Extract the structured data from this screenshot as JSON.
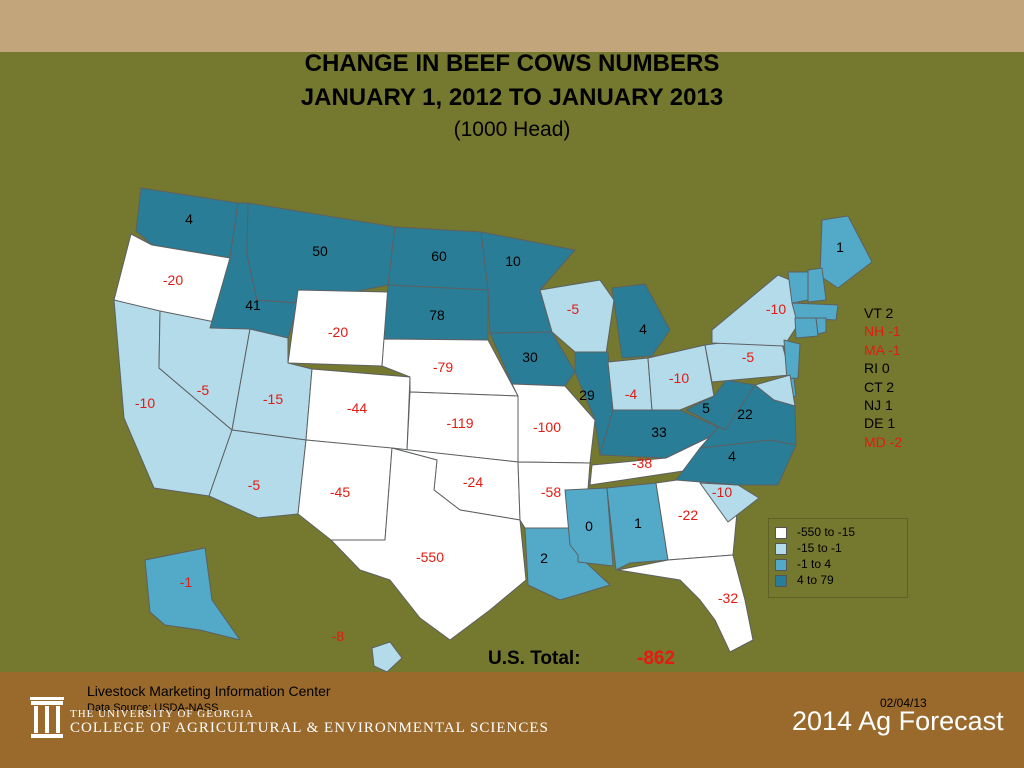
{
  "title": {
    "line1": "CHANGE IN BEEF COWS NUMBERS",
    "line2": "JANUARY 1, 2012 TO JANUARY 2013",
    "line3": "(1000 Head)"
  },
  "colors": {
    "slide_background": "#75782f",
    "top_band": "#c3a57c",
    "footer_band": "#9a6a2c",
    "state_border": "#5d6062",
    "negative_label": "#e31b12",
    "positive_label": "#000000"
  },
  "legend": [
    {
      "label": "-550 to -15",
      "color": "#ffffff"
    },
    {
      "label": "-15 to -1",
      "color": "#b3dbe9"
    },
    {
      "label": "-1 to 4",
      "color": "#52aac8"
    },
    {
      "label": "4 to 79",
      "color": "#2a7d96"
    }
  ],
  "chart_data": {
    "type": "map",
    "unit": "1000 Head",
    "states": [
      {
        "state": "WA",
        "value": 4
      },
      {
        "state": "OR",
        "value": -20
      },
      {
        "state": "CA",
        "value": -10
      },
      {
        "state": "ID",
        "value": 41
      },
      {
        "state": "NV",
        "value": -5
      },
      {
        "state": "MT",
        "value": 50
      },
      {
        "state": "WY",
        "value": -20
      },
      {
        "state": "UT",
        "value": -15
      },
      {
        "state": "AZ",
        "value": -5
      },
      {
        "state": "CO",
        "value": -44
      },
      {
        "state": "NM",
        "value": -45
      },
      {
        "state": "ND",
        "value": 60
      },
      {
        "state": "SD",
        "value": 78
      },
      {
        "state": "NE",
        "value": -79
      },
      {
        "state": "KS",
        "value": -119
      },
      {
        "state": "OK",
        "value": -24
      },
      {
        "state": "TX",
        "value": -550
      },
      {
        "state": "MN",
        "value": 10
      },
      {
        "state": "IA",
        "value": 30
      },
      {
        "state": "MO",
        "value": -100
      },
      {
        "state": "AR",
        "value": -58
      },
      {
        "state": "LA",
        "value": 2
      },
      {
        "state": "WI",
        "value": -5
      },
      {
        "state": "IL",
        "value": 29
      },
      {
        "state": "MI",
        "value": 4
      },
      {
        "state": "IN",
        "value": -4
      },
      {
        "state": "OH",
        "value": -10
      },
      {
        "state": "KY",
        "value": 33
      },
      {
        "state": "TN",
        "value": -38
      },
      {
        "state": "MS",
        "value": 0
      },
      {
        "state": "AL",
        "value": 1
      },
      {
        "state": "GA",
        "value": -22
      },
      {
        "state": "FL",
        "value": -32
      },
      {
        "state": "SC",
        "value": -10
      },
      {
        "state": "NC",
        "value": 4
      },
      {
        "state": "VA",
        "value": 22
      },
      {
        "state": "WV",
        "value": 5
      },
      {
        "state": "PA",
        "value": -5
      },
      {
        "state": "NY",
        "value": -10
      },
      {
        "state": "ME",
        "value": 1
      },
      {
        "state": "AK",
        "value": -1
      },
      {
        "state": "HI",
        "value": -8
      },
      {
        "state": "VT",
        "value": 2
      },
      {
        "state": "NH",
        "value": -1
      },
      {
        "state": "MA",
        "value": -1
      },
      {
        "state": "RI",
        "value": 0
      },
      {
        "state": "CT",
        "value": 2
      },
      {
        "state": "NJ",
        "value": 1
      },
      {
        "state": "DE",
        "value": 1
      },
      {
        "state": "MD",
        "value": -2
      }
    ],
    "small_states_list": [
      "VT 2",
      "NH -1",
      "MA -1",
      "RI 0",
      "CT 2",
      "NJ 1",
      "DE 1",
      "MD -2"
    ]
  },
  "total": {
    "label": "U.S. Total:",
    "value": "-862"
  },
  "footer": {
    "center": "Livestock Marketing Information Center",
    "source": "Data Source: USDA-NASS",
    "date": "02/04/13",
    "university_line1": "THE UNIVERSITY OF GEORGIA",
    "university_line2": "COLLEGE OF AGRICULTURAL & ENVIRONMENTAL SCIENCES",
    "forecast": "2014 Ag Forecast"
  }
}
